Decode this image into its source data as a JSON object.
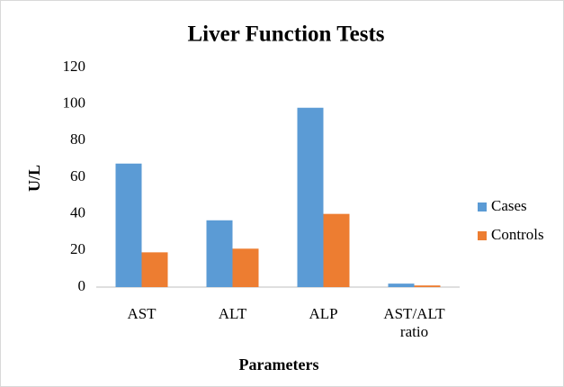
{
  "chart_data": {
    "type": "bar",
    "title": "Liver Function Tests",
    "x_label": "Parameters",
    "y_label": "U/L",
    "categories": [
      "AST",
      "ALT",
      "ALP",
      "AST/ALT ratio"
    ],
    "series": [
      {
        "name": "Cases",
        "color": "#5b9bd5",
        "values": [
          67.5,
          36.5,
          98,
          1.9
        ]
      },
      {
        "name": "Controls",
        "color": "#ed7d31",
        "values": [
          19,
          21,
          40,
          0.9
        ]
      }
    ],
    "ylim": [
      0,
      120
    ],
    "yticks": [
      0,
      20,
      40,
      60,
      80,
      100,
      120
    ],
    "legend": "right"
  }
}
